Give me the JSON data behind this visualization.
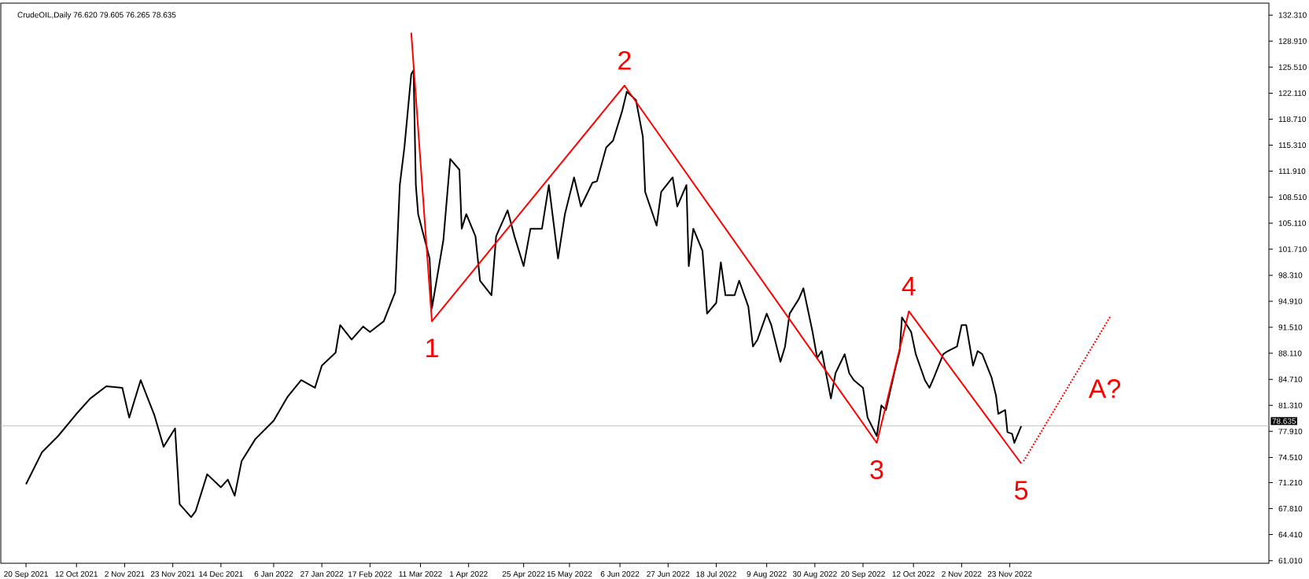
{
  "chart_data": {
    "type": "line",
    "title": "CrudeOIL,Daily 76.620 79.605 76.265 78.635",
    "xlim": [
      "2021-09-09",
      "2023-03-16"
    ],
    "ylim": [
      60.67,
      133.87
    ],
    "xticks": [
      {
        "value": "2021-09-20",
        "label": "20 Sep 2021"
      },
      {
        "value": "2021-10-12",
        "label": "12 Oct 2021"
      },
      {
        "value": "2021-11-02",
        "label": "2 Nov 2021"
      },
      {
        "value": "2021-11-23",
        "label": "23 Nov 2021"
      },
      {
        "value": "2021-12-14",
        "label": "14 Dec 2021"
      },
      {
        "value": "2022-01-06",
        "label": "6 Jan 2022"
      },
      {
        "value": "2022-01-27",
        "label": "27 Jan 2022"
      },
      {
        "value": "2022-02-17",
        "label": "17 Feb 2022"
      },
      {
        "value": "2022-03-11",
        "label": "11 Mar 2022"
      },
      {
        "value": "2022-04-01",
        "label": "1 Apr 2022"
      },
      {
        "value": "2022-04-25",
        "label": "25 Apr 2022"
      },
      {
        "value": "2022-05-15",
        "label": "15 May 2022"
      },
      {
        "value": "2022-06-06",
        "label": "6 Jun 2022"
      },
      {
        "value": "2022-06-27",
        "label": "27 Jun 2022"
      },
      {
        "value": "2022-07-18",
        "label": "18 Jul 2022"
      },
      {
        "value": "2022-08-09",
        "label": "9 Aug 2022"
      },
      {
        "value": "2022-08-30",
        "label": "30 Aug 2022"
      },
      {
        "value": "2022-09-20",
        "label": "20 Sep 2022"
      },
      {
        "value": "2022-10-12",
        "label": "12 Oct 2022"
      },
      {
        "value": "2022-11-02",
        "label": "2 Nov 2022"
      },
      {
        "value": "2022-11-23",
        "label": "23 Nov 2022"
      }
    ],
    "yticks": [
      {
        "value": 61.01,
        "label": "61.010"
      },
      {
        "value": 64.41,
        "label": "64.410"
      },
      {
        "value": 67.81,
        "label": "67.810"
      },
      {
        "value": 71.21,
        "label": "71.210"
      },
      {
        "value": 74.51,
        "label": "74.510"
      },
      {
        "value": 77.91,
        "label": "77.910"
      },
      {
        "value": 81.31,
        "label": "81.310"
      },
      {
        "value": 84.71,
        "label": "84.710"
      },
      {
        "value": 88.11,
        "label": "88.110"
      },
      {
        "value": 91.51,
        "label": "91.510"
      },
      {
        "value": 94.91,
        "label": "94.910"
      },
      {
        "value": 98.31,
        "label": "98.310"
      },
      {
        "value": 101.71,
        "label": "101.710"
      },
      {
        "value": 105.11,
        "label": "105.110"
      },
      {
        "value": 108.51,
        "label": "108.510"
      },
      {
        "value": 111.91,
        "label": "111.910"
      },
      {
        "value": 115.31,
        "label": "115.310"
      },
      {
        "value": 118.71,
        "label": "118.710"
      },
      {
        "value": 122.11,
        "label": "122.110"
      },
      {
        "value": 125.51,
        "label": "125.510"
      },
      {
        "value": 128.91,
        "label": "128.910"
      },
      {
        "value": 132.31,
        "label": "132.310"
      }
    ],
    "marker": "none",
    "grid": false,
    "ref_lines": [
      {
        "axis": "y",
        "value": 78.635,
        "label": "78.635",
        "color": "#c0c0c0"
      }
    ],
    "series": [
      {
        "color": "#000000",
        "line_style": "solid",
        "x": [
          "2021-09-20",
          "2021-09-27",
          "2021-10-04",
          "2021-10-12",
          "2021-10-18",
          "2021-10-25",
          "2021-11-01",
          "2021-11-04",
          "2021-11-09",
          "2021-11-15",
          "2021-11-19",
          "2021-11-24",
          "2021-11-26",
          "2021-12-01",
          "2021-12-03",
          "2021-12-08",
          "2021-12-14",
          "2021-12-17",
          "2021-12-20",
          "2021-12-23",
          "2021-12-29",
          "2022-01-06",
          "2022-01-12",
          "2022-01-18",
          "2022-01-24",
          "2022-01-27",
          "2022-02-02",
          "2022-02-04",
          "2022-02-09",
          "2022-02-14",
          "2022-02-17",
          "2022-02-23",
          "2022-02-28",
          "2022-03-02",
          "2022-03-04",
          "2022-03-07",
          "2022-03-08",
          "2022-03-09",
          "2022-03-10",
          "2022-03-15",
          "2022-03-16",
          "2022-03-21",
          "2022-03-24",
          "2022-03-28",
          "2022-03-29",
          "2022-03-31",
          "2022-04-04",
          "2022-04-06",
          "2022-04-11",
          "2022-04-13",
          "2022-04-18",
          "2022-04-21",
          "2022-04-25",
          "2022-04-28",
          "2022-05-03",
          "2022-05-06",
          "2022-05-10",
          "2022-05-13",
          "2022-05-17",
          "2022-05-20",
          "2022-05-25",
          "2022-05-27",
          "2022-05-31",
          "2022-06-03",
          "2022-06-07",
          "2022-06-09",
          "2022-06-13",
          "2022-06-16",
          "2022-06-17",
          "2022-06-22",
          "2022-06-24",
          "2022-06-29",
          "2022-07-01",
          "2022-07-05",
          "2022-07-06",
          "2022-07-08",
          "2022-07-12",
          "2022-07-14",
          "2022-07-18",
          "2022-07-20",
          "2022-07-22",
          "2022-07-26",
          "2022-07-28",
          "2022-08-01",
          "2022-08-03",
          "2022-08-05",
          "2022-08-09",
          "2022-08-11",
          "2022-08-15",
          "2022-08-17",
          "2022-08-19",
          "2022-08-23",
          "2022-08-25",
          "2022-08-29",
          "2022-08-31",
          "2022-09-02",
          "2022-09-06",
          "2022-09-08",
          "2022-09-12",
          "2022-09-14",
          "2022-09-16",
          "2022-09-20",
          "2022-09-22",
          "2022-09-26",
          "2022-09-28",
          "2022-09-30",
          "2022-10-04",
          "2022-10-06",
          "2022-10-07",
          "2022-10-11",
          "2022-10-13",
          "2022-10-17",
          "2022-10-19",
          "2022-10-21",
          "2022-10-25",
          "2022-10-27",
          "2022-10-31",
          "2022-11-02",
          "2022-11-04",
          "2022-11-07",
          "2022-11-09",
          "2022-11-11",
          "2022-11-15",
          "2022-11-17",
          "2022-11-18",
          "2022-11-21",
          "2022-11-22",
          "2022-11-24",
          "2022-11-25",
          "2022-11-28"
        ],
        "values": [
          71.0,
          75.2,
          77.3,
          80.2,
          82.2,
          83.8,
          83.6,
          79.7,
          84.6,
          80.0,
          75.9,
          78.3,
          68.4,
          66.7,
          67.5,
          72.3,
          70.6,
          71.6,
          69.5,
          74.0,
          76.9,
          79.3,
          82.4,
          84.6,
          83.6,
          86.5,
          88.2,
          91.8,
          89.9,
          91.6,
          90.9,
          92.3,
          96.1,
          110.1,
          115.0,
          124.6,
          125.1,
          110.1,
          106.3,
          100.5,
          94.0,
          102.9,
          113.5,
          112.1,
          104.4,
          106.3,
          103.4,
          97.6,
          95.7,
          103.4,
          106.8,
          103.4,
          99.5,
          104.4,
          104.4,
          110.1,
          100.5,
          106.3,
          111.1,
          107.3,
          110.4,
          110.6,
          115.0,
          115.9,
          119.8,
          122.3,
          121.2,
          116.4,
          109.2,
          104.8,
          109.2,
          111.1,
          107.3,
          110.1,
          99.5,
          104.4,
          101.5,
          93.3,
          94.7,
          100.0,
          95.7,
          95.7,
          97.6,
          94.2,
          89.0,
          89.9,
          93.3,
          91.8,
          87.0,
          89.0,
          93.3,
          95.2,
          96.6,
          90.9,
          87.5,
          88.4,
          82.2,
          85.5,
          88.0,
          85.5,
          84.6,
          83.6,
          79.7,
          77.3,
          81.3,
          80.7,
          86.0,
          88.4,
          92.8,
          90.9,
          88.0,
          84.6,
          83.6,
          85.0,
          88.0,
          88.4,
          89.0,
          91.8,
          91.8,
          86.5,
          88.4,
          88.0,
          85.0,
          82.6,
          80.2,
          80.7,
          77.8,
          77.6,
          76.4,
          78.6
        ]
      },
      {
        "color": "#ff0000",
        "line_style": "solid",
        "x": [
          "2022-03-07",
          "2022-03-16",
          "2022-06-08",
          "2022-09-26",
          "2022-10-10",
          "2022-11-28"
        ],
        "values": [
          130.0,
          92.3,
          123.1,
          76.4,
          93.6,
          73.7
        ]
      },
      {
        "color": "#ff0000",
        "line_style": "dotted",
        "x": [
          "2022-11-29",
          "2023-01-06"
        ],
        "values": [
          74.0,
          93.0
        ]
      }
    ],
    "annotations": [
      "1",
      "2",
      "3",
      "4",
      "5",
      "A?"
    ]
  }
}
